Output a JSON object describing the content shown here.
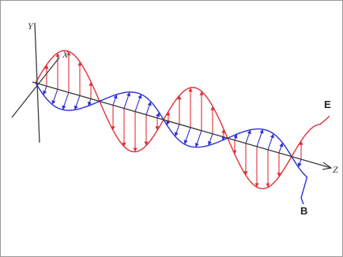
{
  "figure": {
    "axes": {
      "y": "Y",
      "x": "X",
      "z": "Z"
    },
    "waves": {
      "e": {
        "label": "E",
        "color": "#e0303a"
      },
      "b": {
        "label": "B",
        "color": "#2b2fd6"
      }
    },
    "axis_color": "#3c3c3c"
  }
}
